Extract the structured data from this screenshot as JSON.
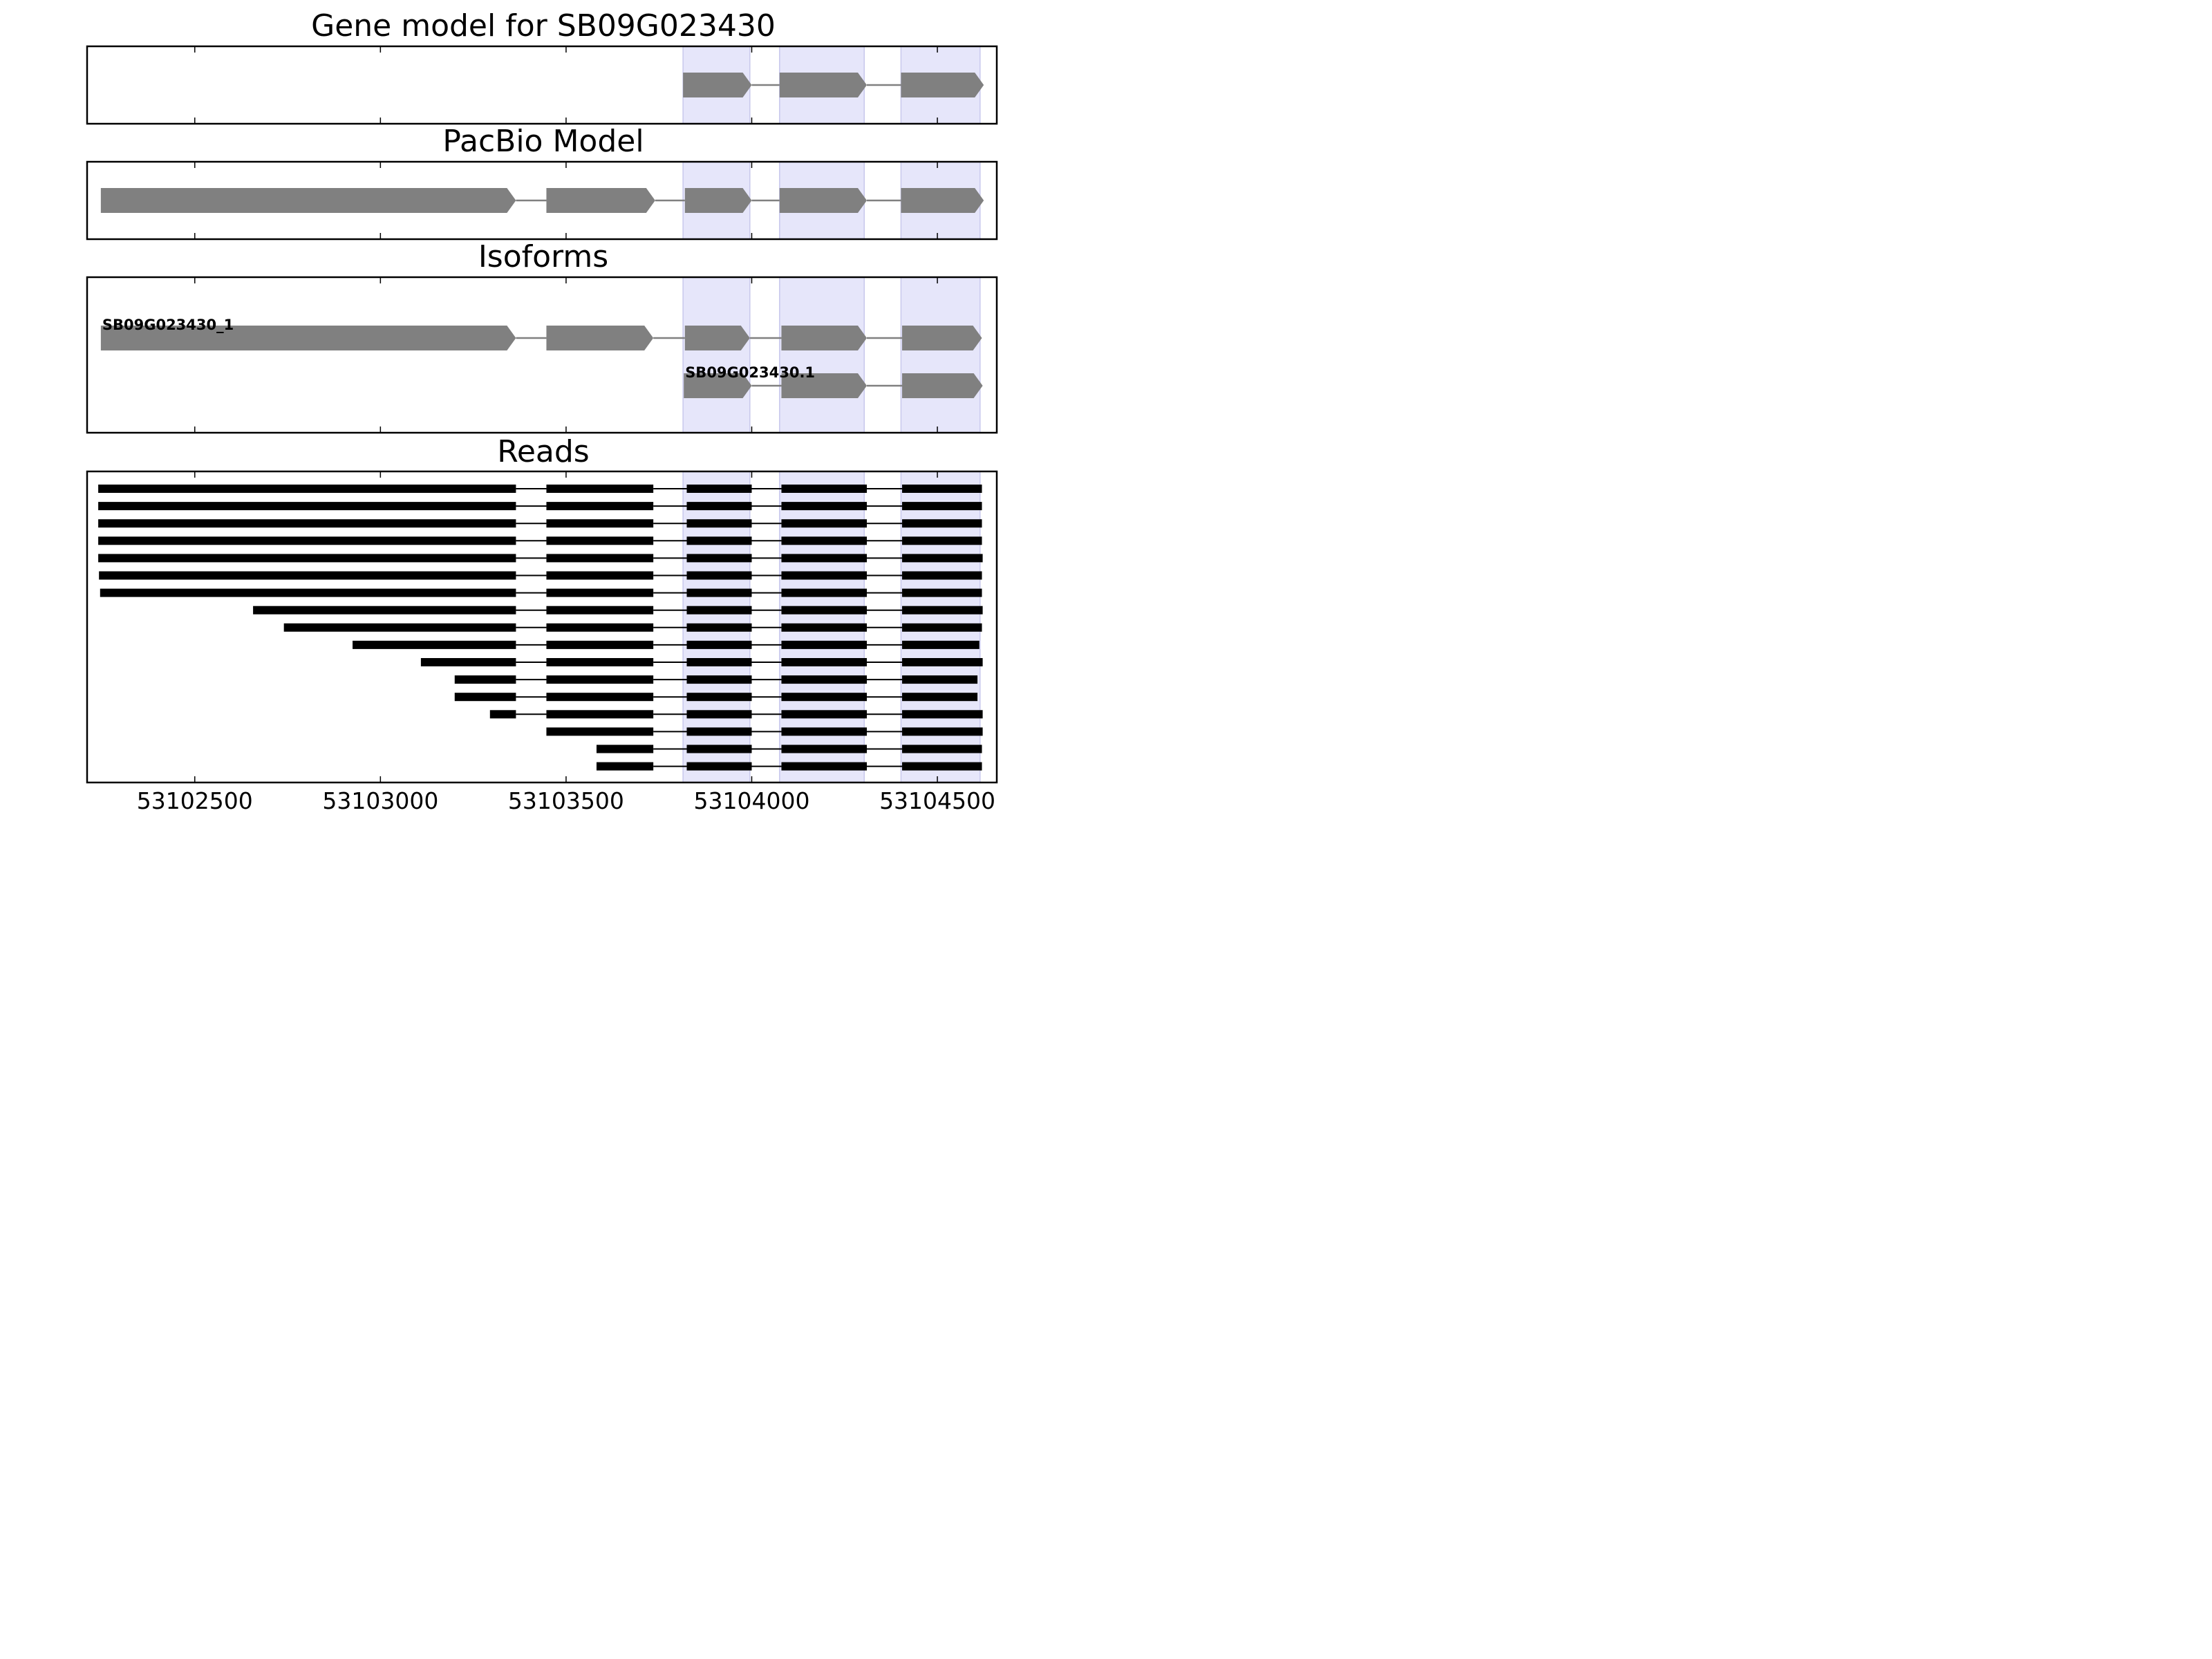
{
  "chart_data": {
    "type": "gene-track",
    "x": {
      "range": [
        53102210,
        53104660
      ],
      "ticks": [
        53102500,
        53103000,
        53103500,
        53104000,
        53104500
      ],
      "tick_labels": [
        "53102500",
        "53103000",
        "53103500",
        "53104000",
        "53104500"
      ]
    },
    "colors": {
      "exon": "#808080",
      "intron": "#808080",
      "read": "#000000",
      "highlight": "#e6e6fa",
      "highlight_edge": "#c8c8ec",
      "frame": "#000000"
    },
    "highlight_regions": [
      [
        53103815,
        53103995
      ],
      [
        53104075,
        53104303
      ],
      [
        53104402,
        53104615
      ]
    ],
    "panels": [
      {
        "title": "Gene model for SB09G023430",
        "tracks": [
          {
            "label": "",
            "exons": [
              [
                53103815,
                53104000
              ],
              [
                53104075,
                53104310
              ],
              [
                53104402,
                53104625
              ]
            ]
          }
        ]
      },
      {
        "title": "PacBio Model",
        "tracks": [
          {
            "label": "",
            "exons": [
              [
                53102247,
                53103365
              ],
              [
                53103447,
                53103740
              ],
              [
                53103820,
                53104000
              ],
              [
                53104075,
                53104310
              ],
              [
                53104402,
                53104625
              ]
            ]
          }
        ]
      },
      {
        "title": "Isoforms",
        "tracks": [
          {
            "label": "SB09G023430_1",
            "exons": [
              [
                53102247,
                53103365
              ],
              [
                53103447,
                53103735
              ],
              [
                53103820,
                53103995
              ],
              [
                53104080,
                53104310
              ],
              [
                53104405,
                53104620
              ]
            ]
          },
          {
            "label": "SB09G023430.1",
            "exons": [
              [
                53103817,
                53104000
              ],
              [
                53104080,
                53104310
              ],
              [
                53104405,
                53104622
              ]
            ]
          }
        ]
      },
      {
        "title": "Reads",
        "reads": [
          [
            [
              53102240,
              53103365
            ],
            [
              53103447,
              53103735
            ],
            [
              53103825,
              53104000
            ],
            [
              53104080,
              53104310
            ],
            [
              53104405,
              53104620
            ]
          ],
          [
            [
              53102240,
              53103365
            ],
            [
              53103447,
              53103735
            ],
            [
              53103825,
              53104000
            ],
            [
              53104080,
              53104310
            ],
            [
              53104405,
              53104620
            ]
          ],
          [
            [
              53102240,
              53103365
            ],
            [
              53103447,
              53103735
            ],
            [
              53103825,
              53104000
            ],
            [
              53104080,
              53104310
            ],
            [
              53104405,
              53104620
            ]
          ],
          [
            [
              53102240,
              53103365
            ],
            [
              53103447,
              53103735
            ],
            [
              53103825,
              53104000
            ],
            [
              53104080,
              53104310
            ],
            [
              53104405,
              53104620
            ]
          ],
          [
            [
              53102240,
              53103365
            ],
            [
              53103447,
              53103735
            ],
            [
              53103825,
              53104000
            ],
            [
              53104080,
              53104310
            ],
            [
              53104405,
              53104622
            ]
          ],
          [
            [
              53102242,
              53103365
            ],
            [
              53103447,
              53103735
            ],
            [
              53103825,
              53104000
            ],
            [
              53104080,
              53104310
            ],
            [
              53104405,
              53104620
            ]
          ],
          [
            [
              53102245,
              53103365
            ],
            [
              53103447,
              53103735
            ],
            [
              53103825,
              53104000
            ],
            [
              53104080,
              53104310
            ],
            [
              53104405,
              53104620
            ]
          ],
          [
            [
              53102657,
              53103365
            ],
            [
              53103447,
              53103735
            ],
            [
              53103825,
              53104000
            ],
            [
              53104080,
              53104310
            ],
            [
              53104405,
              53104622
            ]
          ],
          [
            [
              53102740,
              53103365
            ],
            [
              53103447,
              53103735
            ],
            [
              53103825,
              53104000
            ],
            [
              53104080,
              53104310
            ],
            [
              53104405,
              53104620
            ]
          ],
          [
            [
              53102925,
              53103365
            ],
            [
              53103447,
              53103735
            ],
            [
              53103825,
              53104000
            ],
            [
              53104080,
              53104310
            ],
            [
              53104405,
              53104613
            ]
          ],
          [
            [
              53103109,
              53103365
            ],
            [
              53103447,
              53103735
            ],
            [
              53103825,
              53104000
            ],
            [
              53104080,
              53104310
            ],
            [
              53104405,
              53104622
            ]
          ],
          [
            [
              53103200,
              53103365
            ],
            [
              53103447,
              53103735
            ],
            [
              53103825,
              53104000
            ],
            [
              53104080,
              53104310
            ],
            [
              53104405,
              53104608
            ]
          ],
          [
            [
              53103200,
              53103365
            ],
            [
              53103447,
              53103735
            ],
            [
              53103825,
              53104000
            ],
            [
              53104080,
              53104310
            ],
            [
              53104405,
              53104608
            ]
          ],
          [
            [
              53103295,
              53103365
            ],
            [
              53103447,
              53103735
            ],
            [
              53103825,
              53104000
            ],
            [
              53104080,
              53104310
            ],
            [
              53104405,
              53104622
            ]
          ],
          [
            [
              53103447,
              53103735
            ],
            [
              53103825,
              53104000
            ],
            [
              53104080,
              53104310
            ],
            [
              53104405,
              53104622
            ]
          ],
          [
            [
              53103582,
              53103735
            ],
            [
              53103825,
              53104000
            ],
            [
              53104080,
              53104310
            ],
            [
              53104405,
              53104620
            ]
          ],
          [
            [
              53103582,
              53103735
            ],
            [
              53103825,
              53104000
            ],
            [
              53104080,
              53104310
            ],
            [
              53104405,
              53104620
            ]
          ]
        ]
      }
    ]
  }
}
